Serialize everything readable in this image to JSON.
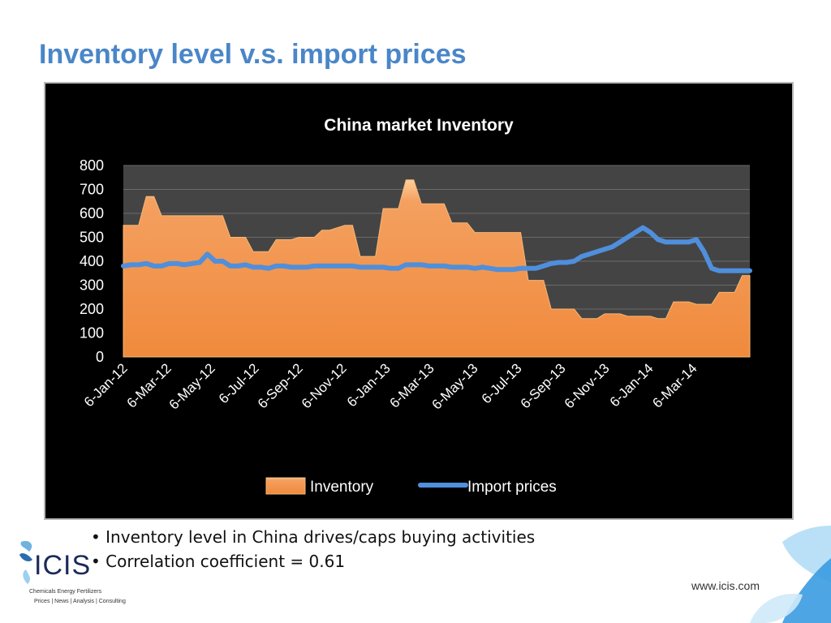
{
  "slide": {
    "title": "Inventory level v.s. import prices",
    "bullets": [
      "Inventory level in China drives/caps buying activities",
      "Correlation coefficient = 0.61"
    ],
    "website": "www.icis.com",
    "logo": {
      "text": "ICIS",
      "tagline1": "Chemicals  Energy  Fertilizers",
      "tagline2": "Prices | News | Analysis | Consulting"
    }
  },
  "colors": {
    "title": "#4a86c8",
    "inventory_fill": "#f4a060",
    "inventory_top": "#ffcf9a",
    "import_prices_line": "#4f8fdc",
    "chart_background": "#000000",
    "plot_background": "#444444"
  },
  "chart_data": {
    "type": "area",
    "title": "China market Inventory",
    "ylim": [
      0,
      800
    ],
    "yticks": [
      0,
      100,
      200,
      300,
      400,
      500,
      600,
      700,
      800
    ],
    "grid": true,
    "legend_placement": "bottom",
    "xtick_labels": [
      "6-Jan-12",
      "6-Mar-12",
      "6-May-12",
      "6-Jul-12",
      "6-Sep-12",
      "6-Nov-12",
      "6-Jan-13",
      "6-Mar-13",
      "6-May-13",
      "6-Jul-13",
      "6-Sep-13",
      "6-Nov-13",
      "6-Jan-14",
      "6-Mar-14"
    ],
    "series": [
      {
        "name": "Inventory",
        "type": "area",
        "values": [
          550,
          550,
          550,
          670,
          670,
          590,
          590,
          590,
          590,
          590,
          590,
          590,
          590,
          590,
          500,
          500,
          500,
          440,
          440,
          440,
          490,
          490,
          490,
          500,
          500,
          500,
          530,
          530,
          540,
          550,
          550,
          420,
          420,
          420,
          620,
          620,
          620,
          740,
          740,
          640,
          640,
          640,
          640,
          560,
          560,
          560,
          520,
          520,
          520,
          520,
          520,
          520,
          520,
          320,
          320,
          320,
          200,
          200,
          200,
          200,
          160,
          160,
          160,
          180,
          180,
          180,
          170,
          170,
          170,
          170,
          160,
          160,
          230,
          230,
          230,
          220,
          220,
          220,
          270,
          270,
          270,
          340,
          340
        ]
      },
      {
        "name": "Import prices",
        "type": "line",
        "values": [
          380,
          385,
          385,
          390,
          380,
          380,
          390,
          390,
          385,
          390,
          395,
          430,
          400,
          400,
          380,
          380,
          385,
          375,
          375,
          370,
          380,
          380,
          375,
          375,
          375,
          380,
          380,
          380,
          380,
          380,
          380,
          375,
          375,
          375,
          375,
          370,
          370,
          385,
          385,
          385,
          380,
          380,
          380,
          375,
          375,
          375,
          370,
          375,
          370,
          365,
          365,
          365,
          370,
          370,
          370,
          380,
          390,
          395,
          395,
          400,
          420,
          430,
          440,
          450,
          460,
          480,
          500,
          520,
          540,
          520,
          490,
          480,
          480,
          480,
          480,
          490,
          440,
          370,
          360,
          360,
          360,
          360,
          360
        ]
      }
    ]
  }
}
